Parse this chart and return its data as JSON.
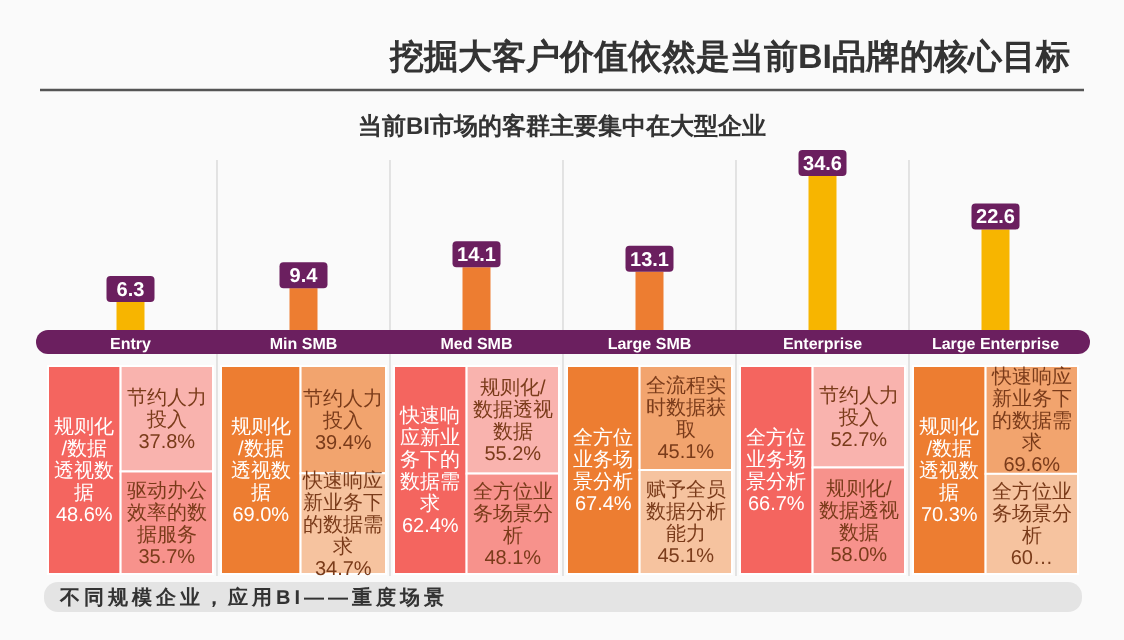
{
  "chart_data": [
    {
      "type": "bar",
      "title": "挖掘大客户价值依然是当前BI品牌的核心目标",
      "subtitle": "当前BI市场的客群主要集中在大型企业",
      "categories": [
        "Entry",
        "Min SMB",
        "Med SMB",
        "Large SMB",
        "Enterprise",
        "Large Enterprise"
      ],
      "values": [
        6.3,
        9.4,
        14.1,
        13.1,
        34.6,
        22.6
      ],
      "colors": [
        "#f7b500",
        "#ed7d31",
        "#ed7d31",
        "#ed7d31",
        "#f7b500",
        "#f7b500"
      ],
      "data_labels": true,
      "annotations": [
        "不同规模企业，应用BI——重度场景"
      ]
    },
    {
      "type": "other",
      "categories": [
        "规则化/数据透视数据",
        "节约人力投入",
        "驱动办公效率的数据服务"
      ],
      "values": [
        48.6,
        37.8,
        35.7
      ],
      "value_labels": [
        "48.6%",
        "37.8%",
        "35.7%"
      ],
      "colors": [
        "#f4655f",
        "#f9b3ae",
        "#f7928c"
      ]
    },
    {
      "type": "other",
      "categories": [
        "规则化/数据透视数据",
        "节约人力投入",
        "快速响应新业务下的数据需求"
      ],
      "values": [
        69.0,
        39.4,
        34.7
      ],
      "value_labels": [
        "69.0%",
        "39.4%",
        "34.7%"
      ],
      "colors": [
        "#ed7d31",
        "#f2a46e",
        "#f6c39f"
      ]
    },
    {
      "type": "other",
      "categories": [
        "快速响应新业务下的数据需求",
        "规则化/数据透视数据",
        "全方位业务场景分析"
      ],
      "values": [
        62.4,
        55.2,
        48.1
      ],
      "value_labels": [
        "62.4%",
        "55.2%",
        "48.1%"
      ],
      "colors": [
        "#f4655f",
        "#f9b3ae",
        "#f7928c"
      ]
    },
    {
      "type": "other",
      "categories": [
        "全方位业务场景分析",
        "全流程实时数据获取",
        "赋予全员数据分析能力"
      ],
      "values": [
        67.4,
        45.1,
        45.1
      ],
      "value_labels": [
        "67.4%",
        "45.1%",
        "45.1%"
      ],
      "colors": [
        "#ed7d31",
        "#f2a46e",
        "#f6c39f"
      ]
    },
    {
      "type": "other",
      "categories": [
        "全方位业务场景分析",
        "节约人力投入",
        "规则化/数据透视数据"
      ],
      "values": [
        66.7,
        52.7,
        58.0
      ],
      "value_labels": [
        "66.7%",
        "52.7%",
        "58.0%"
      ],
      "colors": [
        "#f4655f",
        "#f9b3ae",
        "#f7928c"
      ]
    },
    {
      "type": "other",
      "categories": [
        "规则化/数据透视数据",
        "快速响应新业务下的数据需求",
        "全方位业务场景分析"
      ],
      "values": [
        70.3,
        69.6,
        60
      ],
      "value_labels": [
        "70.3%",
        "69.6%",
        "60…"
      ],
      "colors": [
        "#ed7d31",
        "#f2a46e",
        "#f6c39f"
      ]
    }
  ]
}
